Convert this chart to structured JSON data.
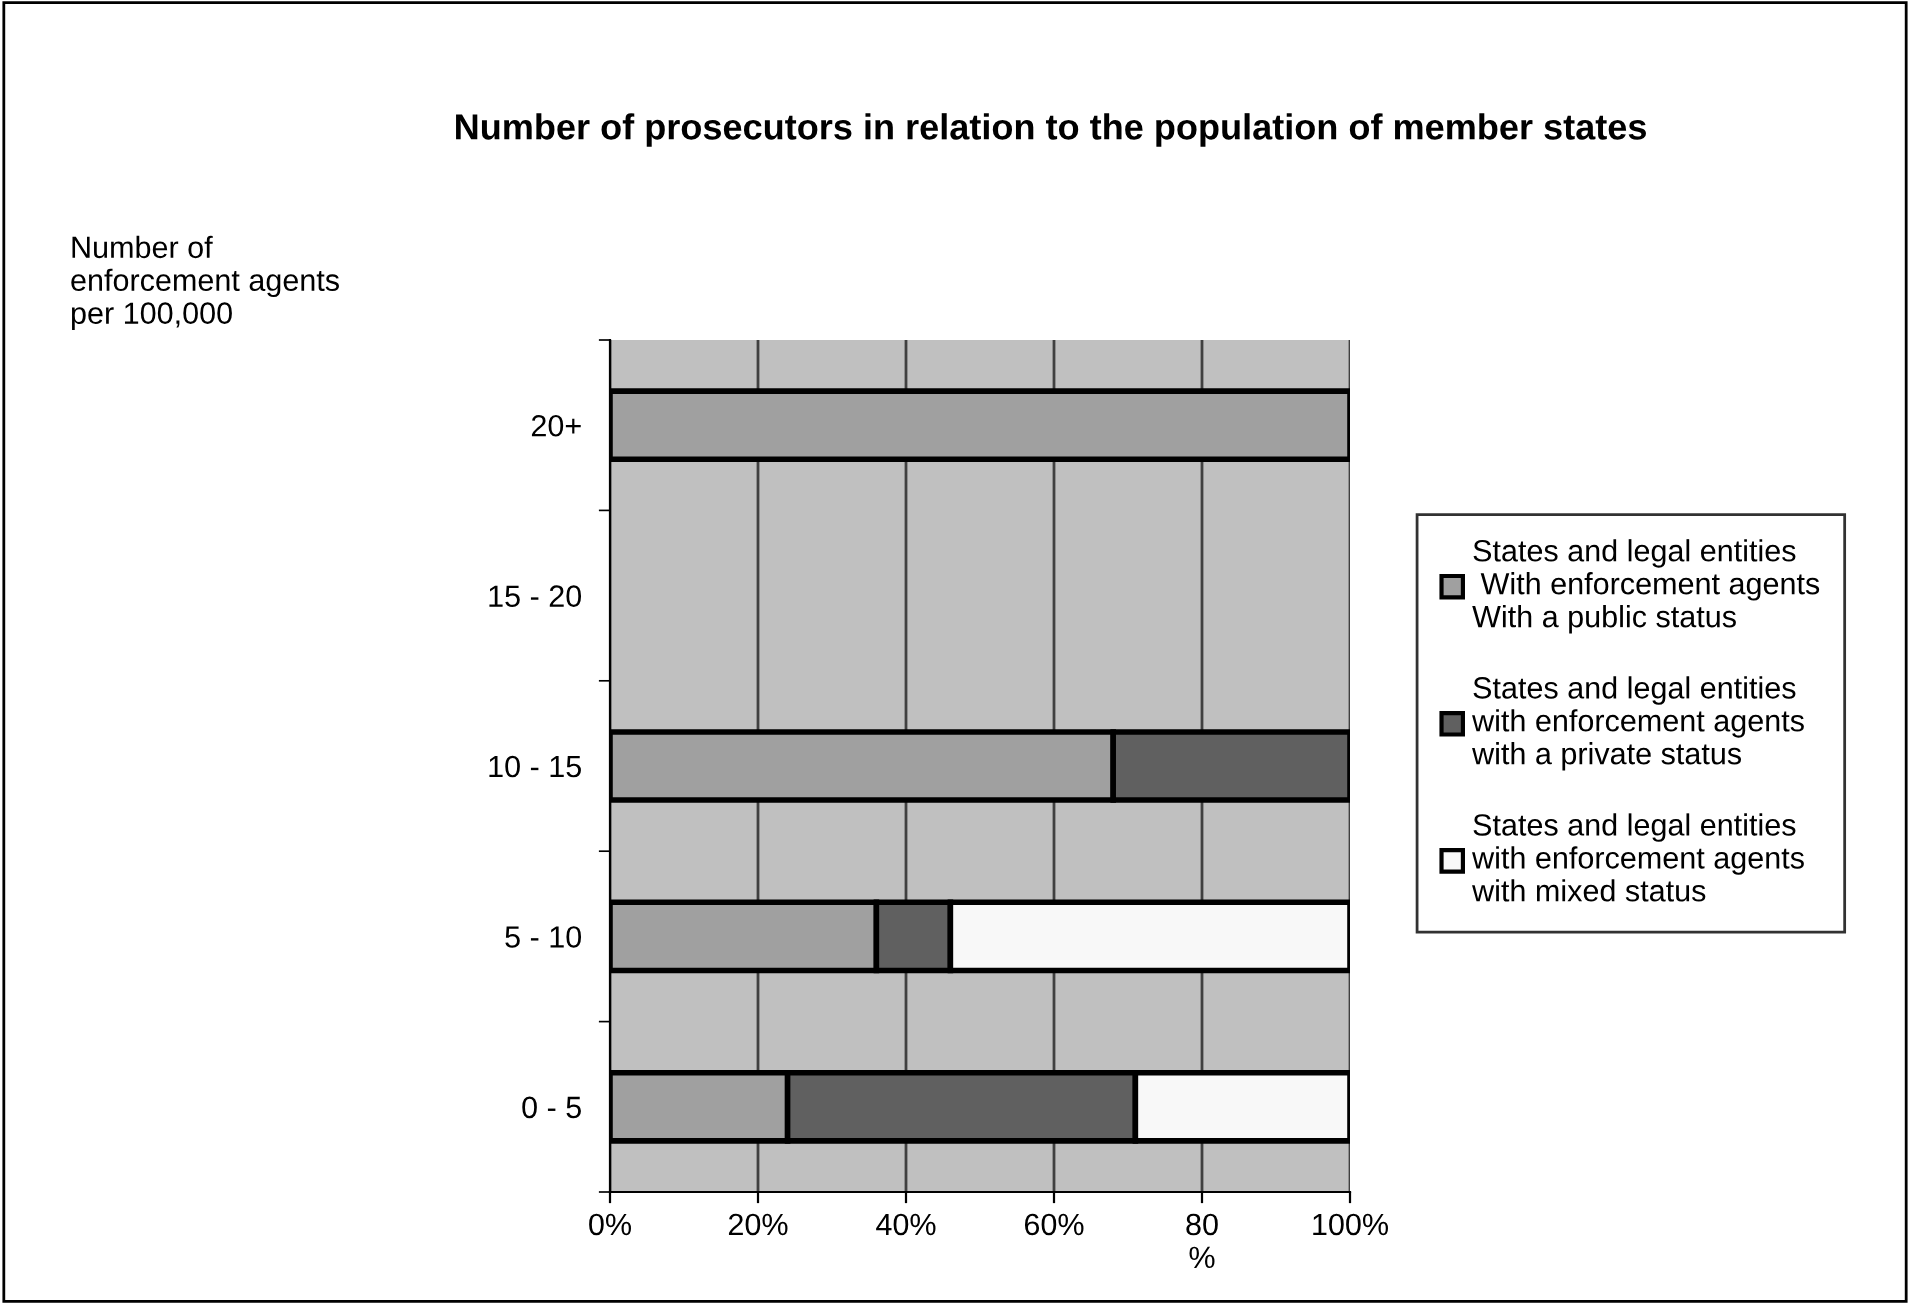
{
  "chart_data": {
    "type": "bar",
    "orientation": "horizontal",
    "stacked": true,
    "title": "Number of prosecutors in relation to the population of member states",
    "ylabel": "Number of\nenforcement agents\nper 100,000",
    "categories": [
      "20+",
      "15 - 20",
      "10 - 15",
      "5 - 10",
      "0 - 5"
    ],
    "series": [
      {
        "name": "States and legal entities\n With enforcement agents\nWith a public status",
        "color": "#a0a0a0",
        "values": [
          100,
          0,
          68,
          36,
          24
        ]
      },
      {
        "name": "States and legal entities\nwith enforcement agents\nwith a private status",
        "color": "#606060",
        "values": [
          0,
          0,
          32,
          10,
          47
        ]
      },
      {
        "name": "States and legal entities\nwith enforcement agents\nwith mixed status",
        "color": "#f8f8f8",
        "values": [
          0,
          0,
          0,
          54,
          29
        ]
      }
    ],
    "xlim": [
      0,
      100
    ],
    "xticks": [
      {
        "value": 0,
        "label": "0%"
      },
      {
        "value": 20,
        "label": "20%"
      },
      {
        "value": 40,
        "label": "40%"
      },
      {
        "value": 60,
        "label": "60%"
      },
      {
        "value": 80,
        "label": "80\n%"
      },
      {
        "value": 100,
        "label": "100%"
      }
    ],
    "grid": "x",
    "legend": "right"
  }
}
